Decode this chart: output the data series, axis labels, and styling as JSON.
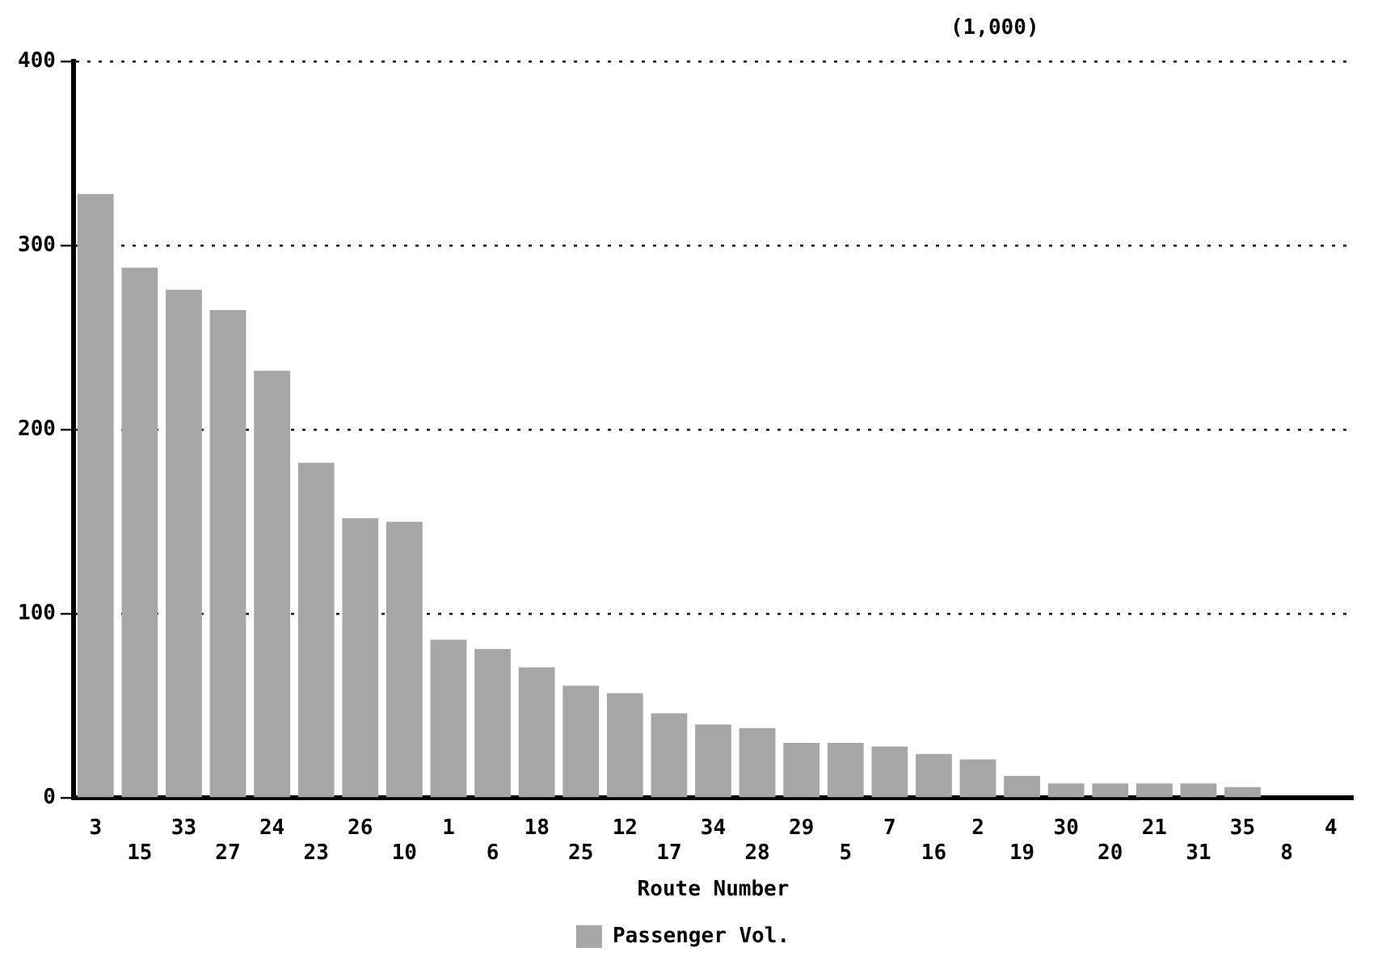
{
  "chart_data": {
    "type": "bar",
    "categories": [
      "3",
      "15",
      "33",
      "27",
      "24",
      "23",
      "26",
      "10",
      "1",
      "6",
      "18",
      "25",
      "12",
      "17",
      "34",
      "28",
      "29",
      "5",
      "7",
      "16",
      "2",
      "19",
      "30",
      "20",
      "21",
      "31",
      "35",
      "8",
      "4"
    ],
    "series": [
      {
        "name": "Passenger Vol.",
        "color": "#a6a6a6",
        "values": [
          328,
          288,
          276,
          265,
          232,
          182,
          152,
          150,
          86,
          81,
          71,
          61,
          57,
          46,
          40,
          38,
          30,
          30,
          28,
          24,
          21,
          12,
          8,
          8,
          8,
          8,
          6,
          0,
          0
        ]
      }
    ],
    "xlabel": "Route Number",
    "annotations": [
      "(1,000)"
    ],
    "ylim": [
      0,
      400
    ],
    "yticks": [
      0,
      100,
      200,
      300,
      400
    ],
    "grid": "y",
    "legend": "bottom"
  }
}
